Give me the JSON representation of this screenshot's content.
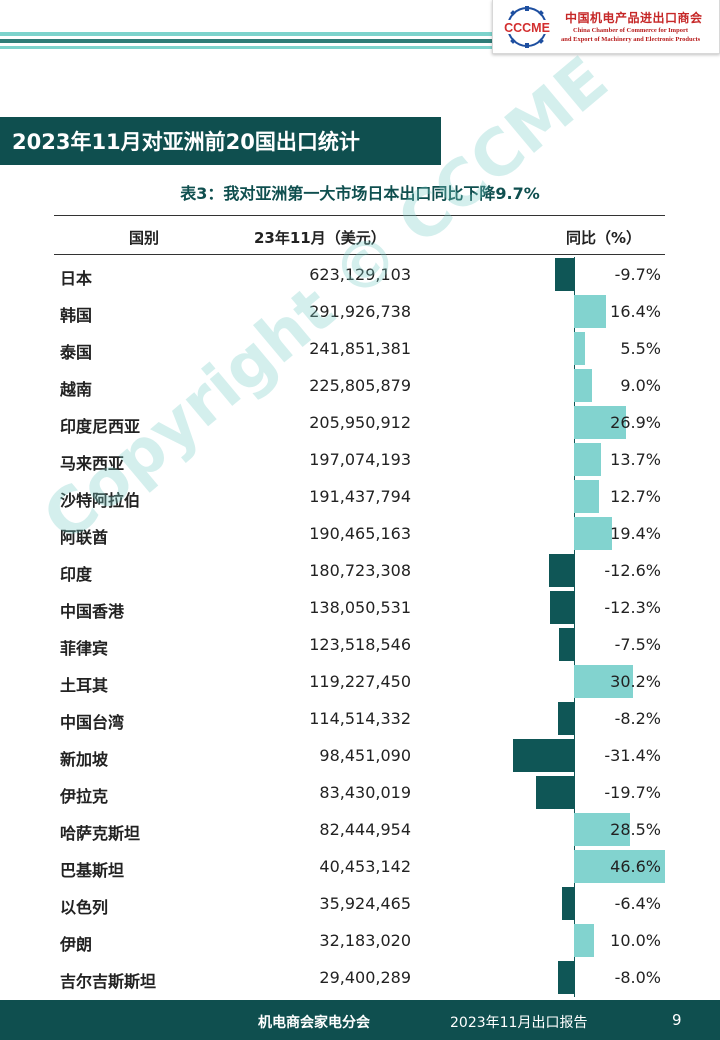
{
  "header": {
    "logo_mark_text": "CCCME",
    "org_cn": "中国机电产品进出口商会",
    "org_en_line1": "China Chamber of Commerce for Import",
    "org_en_line2": "and Export of Machinery and Electronic Products"
  },
  "section_title": "2023年11月对亚洲前20国出口统计",
  "table_title": "表3：我对亚洲第一大市场日本出口同比下降9.7%",
  "table": {
    "columns": [
      "国别",
      "23年11月（美元）",
      "同比（%）"
    ],
    "rows": [
      {
        "country": "日本",
        "amount": "623,129,103",
        "yoy": "-9.7%",
        "yoy_value": -9.7
      },
      {
        "country": "韩国",
        "amount": "291,926,738",
        "yoy": "16.4%",
        "yoy_value": 16.4
      },
      {
        "country": "泰国",
        "amount": "241,851,381",
        "yoy": "5.5%",
        "yoy_value": 5.5
      },
      {
        "country": "越南",
        "amount": "225,805,879",
        "yoy": "9.0%",
        "yoy_value": 9.0
      },
      {
        "country": "印度尼西亚",
        "amount": "205,950,912",
        "yoy": "26.9%",
        "yoy_value": 26.9
      },
      {
        "country": "马来西亚",
        "amount": "197,074,193",
        "yoy": "13.7%",
        "yoy_value": 13.7
      },
      {
        "country": "沙特阿拉伯",
        "amount": "191,437,794",
        "yoy": "12.7%",
        "yoy_value": 12.7
      },
      {
        "country": "阿联酋",
        "amount": "190,465,163",
        "yoy": "19.4%",
        "yoy_value": 19.4
      },
      {
        "country": "印度",
        "amount": "180,723,308",
        "yoy": "-12.6%",
        "yoy_value": -12.6
      },
      {
        "country": "中国香港",
        "amount": "138,050,531",
        "yoy": "-12.3%",
        "yoy_value": -12.3
      },
      {
        "country": "菲律宾",
        "amount": "123,518,546",
        "yoy": "-7.5%",
        "yoy_value": -7.5
      },
      {
        "country": "土耳其",
        "amount": "119,227,450",
        "yoy": "30.2%",
        "yoy_value": 30.2
      },
      {
        "country": "中国台湾",
        "amount": "114,514,332",
        "yoy": "-8.2%",
        "yoy_value": -8.2
      },
      {
        "country": "新加坡",
        "amount": "98,451,090",
        "yoy": "-31.4%",
        "yoy_value": -31.4
      },
      {
        "country": "伊拉克",
        "amount": "83,430,019",
        "yoy": "-19.7%",
        "yoy_value": -19.7
      },
      {
        "country": "哈萨克斯坦",
        "amount": "82,444,954",
        "yoy": "28.5%",
        "yoy_value": 28.5
      },
      {
        "country": "巴基斯坦",
        "amount": "40,453,142",
        "yoy": "46.6%",
        "yoy_value": 46.6
      },
      {
        "country": "以色列",
        "amount": "35,924,465",
        "yoy": "-6.4%",
        "yoy_value": -6.4
      },
      {
        "country": "伊朗",
        "amount": "32,183,020",
        "yoy": "10.0%",
        "yoy_value": 10.0
      },
      {
        "country": "吉尔吉斯斯坦",
        "amount": "29,400,289",
        "yoy": "-8.0%",
        "yoy_value": -8.0
      }
    ]
  },
  "colors": {
    "dark_teal": "#0f4f4f",
    "negative_bar": "#0f5656",
    "positive_bar": "#82d3cf"
  },
  "watermark": "Copyright © CCCME",
  "footer": {
    "left": "机电商会家电分会",
    "middle": "2023年11月出口报告",
    "page": "9"
  }
}
